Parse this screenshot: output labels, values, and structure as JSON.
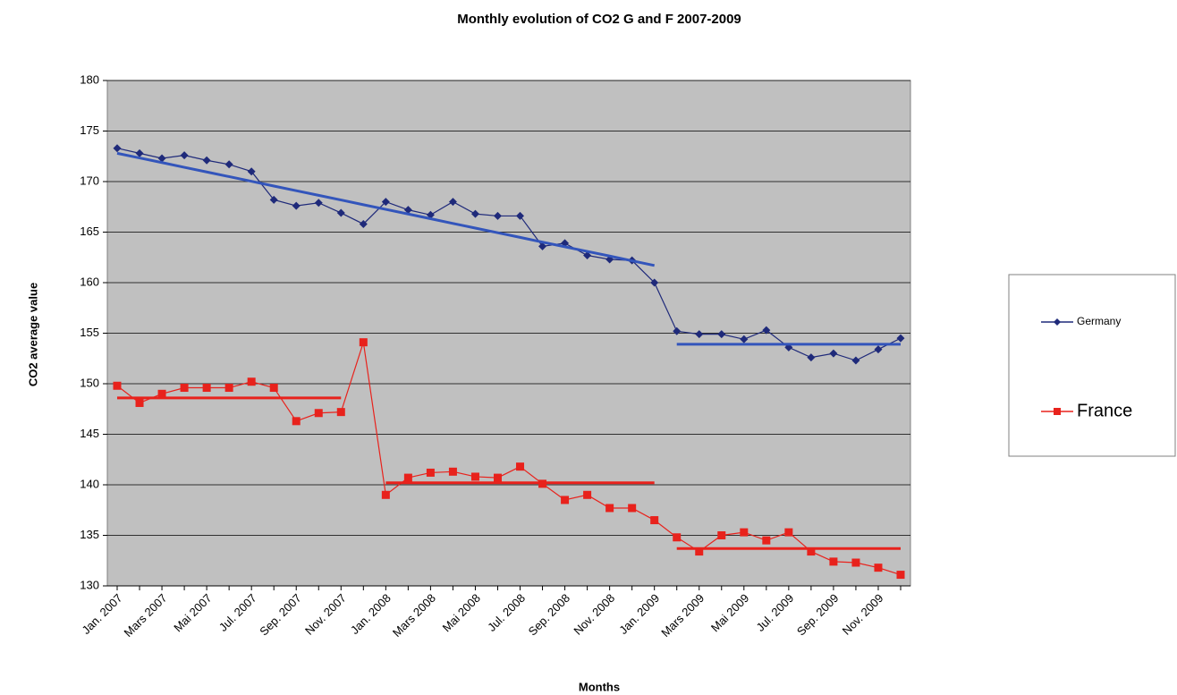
{
  "chart_data": {
    "type": "line",
    "title": "Monthly evolution of CO2 G and F 2007-2009",
    "xlabel": "Months",
    "ylabel": "CO2 average value",
    "categories": [
      "Jan. 2007",
      null,
      "Mars 2007",
      null,
      "Mai 2007",
      null,
      "Jul. 2007",
      null,
      "Sep. 2007",
      null,
      "Nov. 2007",
      null,
      "Jan. 2008",
      null,
      "Mars 2008",
      null,
      "Mai 2008",
      null,
      "Jul. 2008",
      null,
      "Sep. 2008",
      null,
      "Nov. 2008",
      null,
      "Jan. 2009",
      null,
      "Mars 2009",
      null,
      "Mai 2009",
      null,
      "Jul. 2009",
      null,
      "Sep. 2009",
      null,
      "Nov. 2009",
      null
    ],
    "series": [
      {
        "name": "Germany",
        "color": "#1f2a7a",
        "marker": "diamond",
        "values": [
          173.3,
          172.8,
          172.3,
          172.6,
          172.1,
          171.7,
          171.0,
          168.2,
          167.6,
          167.9,
          166.9,
          165.8,
          168.0,
          167.2,
          166.7,
          168.0,
          166.8,
          166.6,
          166.6,
          163.6,
          163.9,
          162.7,
          162.3,
          162.2,
          160.0,
          155.2,
          154.9,
          154.9,
          154.4,
          155.3,
          153.6,
          152.6,
          153.0,
          152.3,
          153.4,
          154.5
        ]
      },
      {
        "name": "France",
        "color": "#e8221c",
        "marker": "square",
        "values": [
          149.8,
          148.1,
          149.0,
          149.6,
          149.6,
          149.6,
          150.2,
          149.6,
          146.3,
          147.1,
          147.2,
          154.1,
          139.0,
          140.7,
          141.2,
          141.3,
          140.8,
          140.7,
          141.8,
          140.1,
          138.5,
          139.0,
          137.7,
          137.7,
          136.5,
          134.8,
          133.4,
          135.0,
          135.3,
          134.5,
          135.3,
          133.4,
          132.4,
          132.3,
          131.8,
          131.1
        ]
      }
    ],
    "trendlines": [
      {
        "color": "#3355bb",
        "values": [
          172.8,
          172.34,
          171.88,
          171.41,
          170.95,
          170.49,
          170.03,
          169.56,
          169.1,
          168.64,
          168.18,
          167.71,
          167.25,
          166.79,
          166.33,
          165.86,
          165.4,
          164.94,
          164.48,
          164.01,
          163.55,
          163.09,
          162.63,
          162.16,
          161.7,
          null,
          null,
          null,
          null,
          null,
          null,
          null,
          null,
          null,
          null,
          null
        ]
      },
      {
        "color": "#3355bb",
        "values": [
          null,
          null,
          null,
          null,
          null,
          null,
          null,
          null,
          null,
          null,
          null,
          null,
          null,
          null,
          null,
          null,
          null,
          null,
          null,
          null,
          null,
          null,
          null,
          null,
          null,
          153.9,
          153.9,
          153.9,
          153.9,
          153.9,
          153.9,
          153.9,
          153.9,
          153.9,
          153.9,
          153.9
        ]
      },
      {
        "color": "#e8221c",
        "values": [
          148.6,
          148.6,
          148.6,
          148.6,
          148.6,
          148.6,
          148.6,
          148.6,
          148.6,
          148.6,
          148.6,
          null,
          null,
          null,
          null,
          null,
          null,
          null,
          null,
          null,
          null,
          null,
          null,
          null,
          null,
          null,
          null,
          null,
          null,
          null,
          null,
          null,
          null,
          null,
          null,
          null
        ]
      },
      {
        "color": "#e8221c",
        "values": [
          null,
          null,
          null,
          null,
          null,
          null,
          null,
          null,
          null,
          null,
          null,
          null,
          140.2,
          140.2,
          140.2,
          140.2,
          140.2,
          140.2,
          140.2,
          140.2,
          140.2,
          140.2,
          140.2,
          140.2,
          140.2,
          null,
          null,
          null,
          null,
          null,
          null,
          null,
          null,
          null,
          null,
          null
        ]
      },
      {
        "color": "#e8221c",
        "values": [
          null,
          null,
          null,
          null,
          null,
          null,
          null,
          null,
          null,
          null,
          null,
          null,
          null,
          null,
          null,
          null,
          null,
          null,
          null,
          null,
          null,
          null,
          null,
          null,
          null,
          133.7,
          133.7,
          133.7,
          133.7,
          133.7,
          133.7,
          133.7,
          133.7,
          133.7,
          133.7,
          133.7
        ]
      }
    ],
    "ylim": [
      130,
      180
    ],
    "yticks": [
      130,
      135,
      140,
      145,
      150,
      155,
      160,
      165,
      170,
      175,
      180
    ],
    "grid": true,
    "plot_background": "#c0c0c0",
    "legend": "right"
  }
}
